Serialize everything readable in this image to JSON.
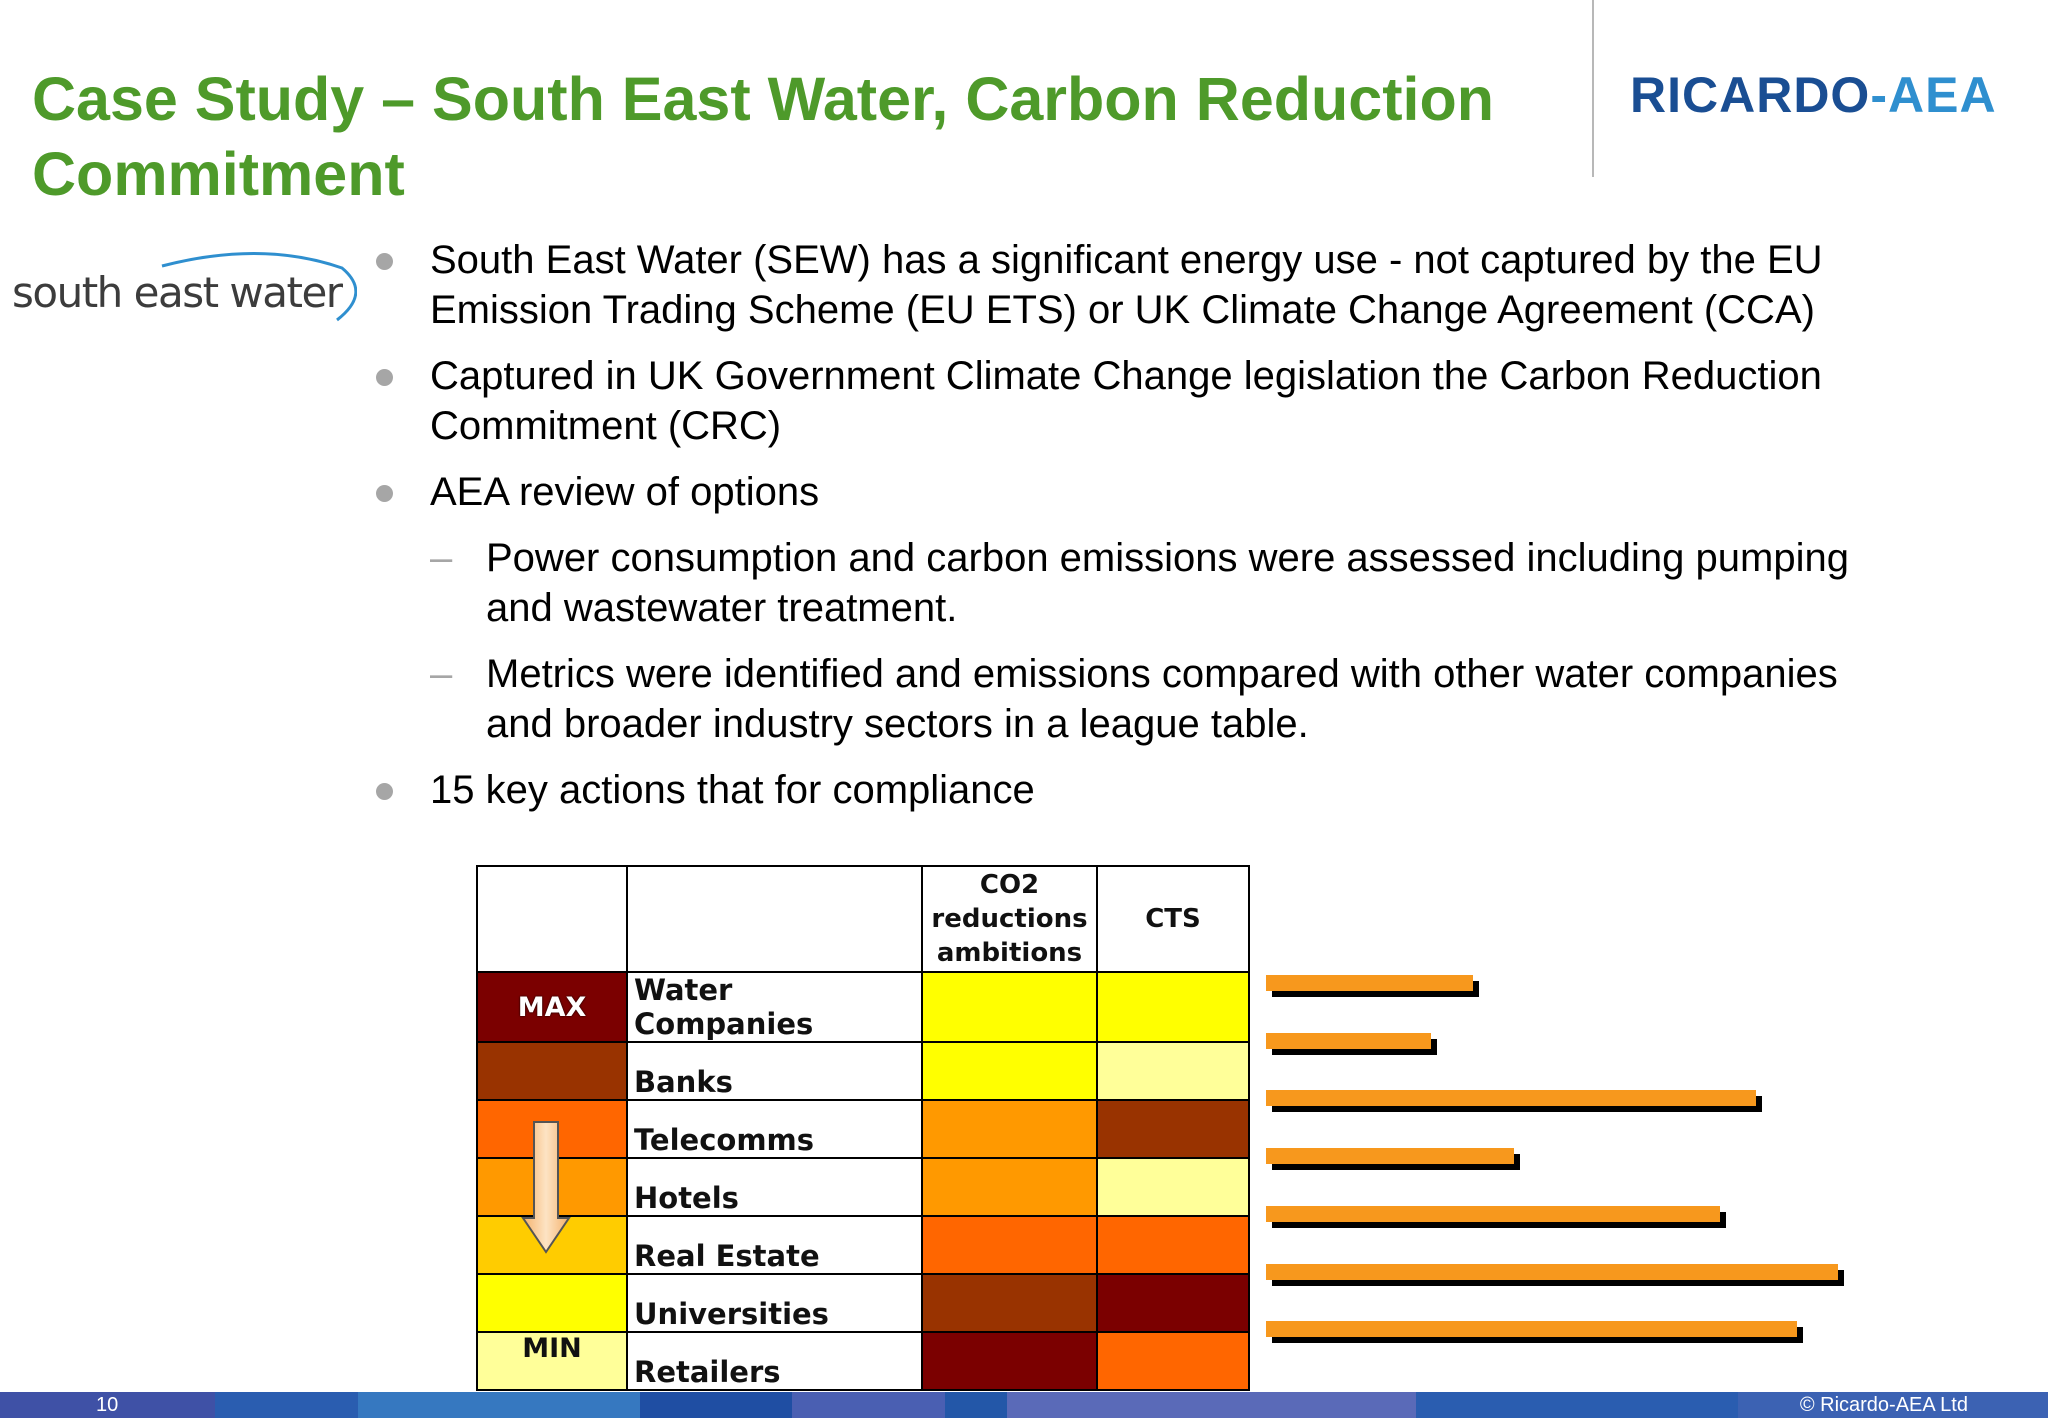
{
  "title_line1": "Case Study – South East Water, Carbon Reduction",
  "title_line2": "Commitment",
  "brand": {
    "part1": "RICARDO",
    "dash": "-",
    "part2": "AEA"
  },
  "sew_logo": "south east water",
  "bullets": [
    {
      "text_line1": "South East Water (SEW) has a significant energy use - not captured by the EU",
      "text_line2": "Emission Trading Scheme (EU ETS) or UK Climate Change Agreement (CCA)"
    },
    {
      "text_line1": "Captured in UK Government Climate Change legislation the Carbon Reduction",
      "text_line2": "Commitment (CRC)"
    },
    {
      "text_line1": "AEA review of options"
    },
    {
      "text_line1": "Power consumption and carbon emissions were assessed including pumping",
      "text_line2": "and wastewater treatment."
    },
    {
      "text_line1": "Metrics were identified and emissions compared with other water companies",
      "text_line2": "and broader industry sectors in a league table."
    },
    {
      "text_line1": "15 key actions that for compliance"
    }
  ],
  "table": {
    "header_co2_line1": "CO2",
    "header_co2_line2": "reductions",
    "header_co2_line3": "ambitions",
    "header_cts": "CTS",
    "max_label": "MAX",
    "min_label": "MIN",
    "rows": [
      {
        "name": "Water Companies",
        "rank_color": "#7b0000",
        "co2_color": "#ffff00",
        "cts_color": "#ffff00"
      },
      {
        "name": "Banks",
        "rank_color": "#993300",
        "co2_color": "#ffff00",
        "cts_color": "#ffff99"
      },
      {
        "name": "Telecomms",
        "rank_color": "#ff6600",
        "co2_color": "#ff9900",
        "cts_color": "#993300"
      },
      {
        "name": "Hotels",
        "rank_color": "#ff9900",
        "co2_color": "#ff9900",
        "cts_color": "#ffff99"
      },
      {
        "name": "Real Estate",
        "rank_color": "#ffcc00",
        "co2_color": "#ff6600",
        "cts_color": "#ff6600"
      },
      {
        "name": "Universities",
        "rank_color": "#ffff00",
        "co2_color": "#993300",
        "cts_color": "#7b0000"
      },
      {
        "name": "Retailers",
        "rank_color": "#ffff99",
        "co2_color": "#7b0000",
        "cts_color": "#ff6600"
      }
    ]
  },
  "bar_values": [
    0.35,
    0.28,
    0.83,
    0.42,
    0.77,
    0.97,
    0.9
  ],
  "colors": {
    "title_green": "#4e9a2a",
    "bar_orange": "#f7981d"
  },
  "footer": {
    "page_number": "10",
    "copyright": "© Ricardo-AEA Ltd"
  }
}
